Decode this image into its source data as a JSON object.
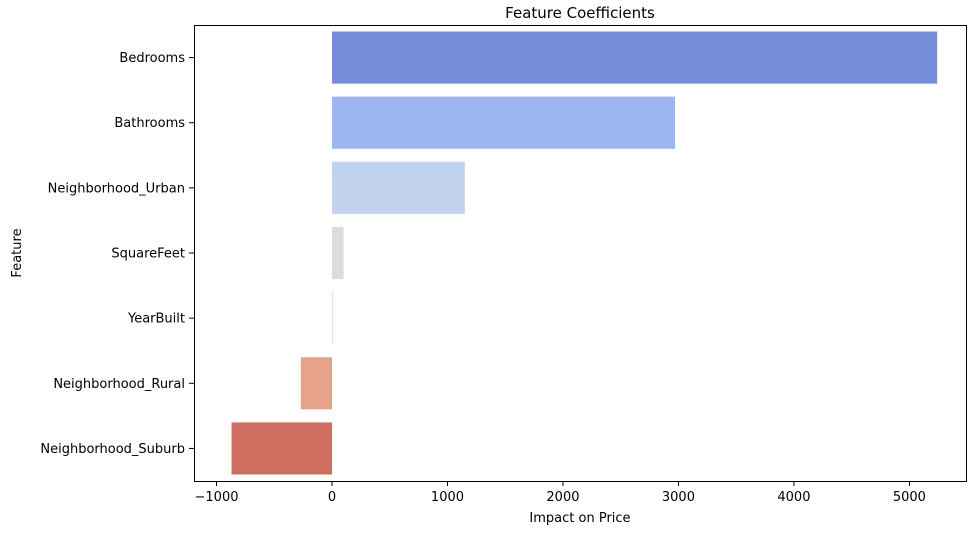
{
  "chart_data": {
    "type": "bar",
    "orientation": "horizontal",
    "title": "Feature Coefficients",
    "xlabel": "Impact on Price",
    "ylabel": "Feature",
    "categories": [
      "Bedrooms",
      "Bathrooms",
      "Neighborhood_Urban",
      "SquareFeet",
      "YearBuilt",
      "Neighborhood_Rural",
      "Neighborhood_Suburb"
    ],
    "values": [
      5240,
      2970,
      1150,
      100,
      5,
      -270,
      -870
    ],
    "colors": [
      "#758ddb",
      "#9bb6f1",
      "#c2d3ef",
      "#dcdcdc",
      "#f4d5c3",
      "#e7a389",
      "#cf6d60"
    ],
    "x_ticks": [
      -1000,
      0,
      1000,
      2000,
      3000,
      4000,
      5000
    ],
    "x_tick_labels": [
      "−1000",
      "0",
      "1000",
      "2000",
      "3000",
      "4000",
      "5000"
    ],
    "xlim": [
      -1195,
      5490
    ],
    "grid": false,
    "legend": "none"
  }
}
